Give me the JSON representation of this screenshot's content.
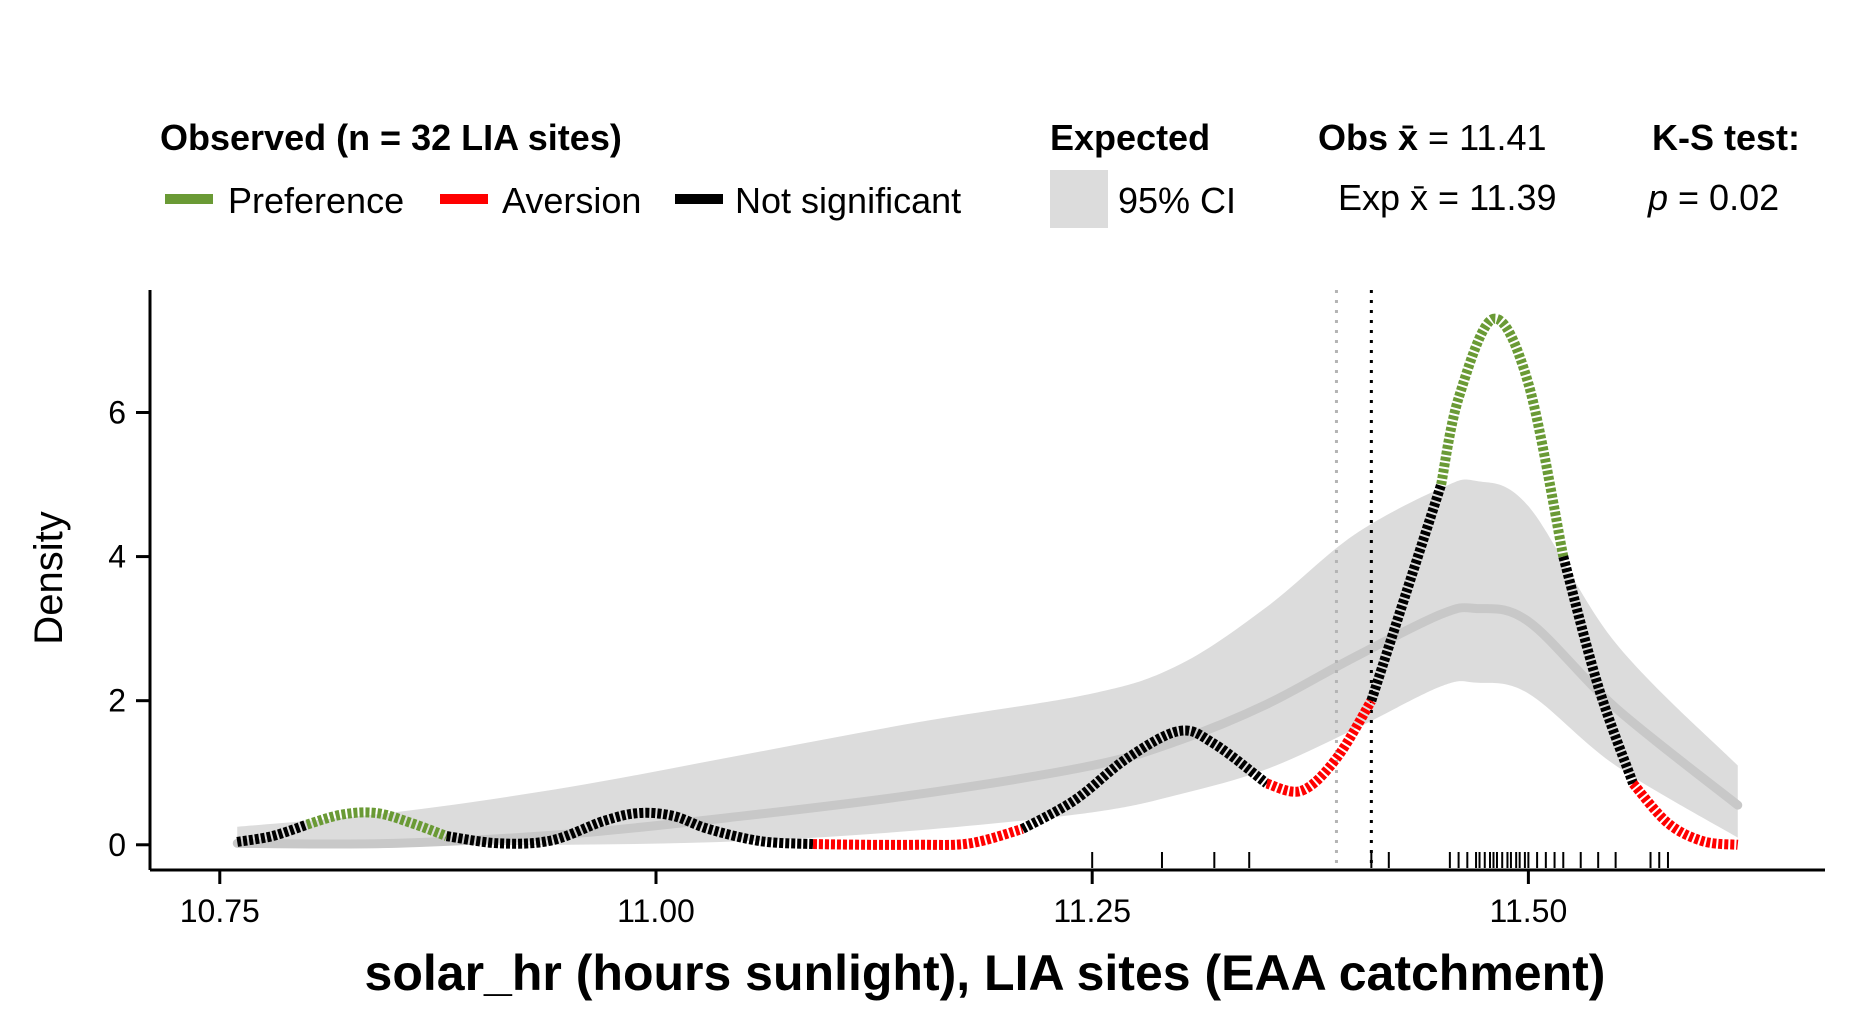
{
  "legend": {
    "observed_title": "Observed (n = 32 LIA sites)",
    "preference": "Preference",
    "aversion": "Aversion",
    "not_significant": "Not significant",
    "expected_title": "Expected",
    "ci_label": "95% CI",
    "obs_mean_label": "Obs x̄",
    "obs_mean_value": "= 11.41",
    "exp_mean_label": "Exp x̄",
    "exp_mean_value": "= 11.39",
    "ks_title": "K-S test:",
    "ks_p_label": "p",
    "ks_p_value": "= 0.02"
  },
  "colors": {
    "preference": "#6a9a35",
    "aversion": "#ff0000",
    "not_significant": "#000000",
    "ci_fill": "#dcdcdc",
    "expected_line": "#c8c8c8",
    "obs_mean_line": "#000000",
    "exp_mean_line": "#b4b4b4"
  },
  "chart_data": {
    "type": "line",
    "title": "",
    "xlabel": "solar_hr (hours sunlight), LIA sites (EAA catchment)",
    "ylabel": "Density",
    "xlim": [
      10.71,
      11.67
    ],
    "ylim": [
      -0.35,
      7.7
    ],
    "x_ticks": [
      10.75,
      11.0,
      11.25,
      11.5
    ],
    "x_tick_labels": [
      "10.75",
      "11.00",
      "11.25",
      "11.50"
    ],
    "y_ticks": [
      0,
      2,
      4,
      6
    ],
    "y_tick_labels": [
      "0",
      "2",
      "4",
      "6"
    ],
    "grid": false,
    "legend_position": "top",
    "observed_mean": 11.41,
    "expected_mean": 11.39,
    "ks_p": 0.02,
    "observed_density": [
      {
        "x": 10.76,
        "y": 0.04,
        "sig": "not_significant"
      },
      {
        "x": 10.78,
        "y": 0.12,
        "sig": "not_significant"
      },
      {
        "x": 10.8,
        "y": 0.28,
        "sig": "preference"
      },
      {
        "x": 10.82,
        "y": 0.42,
        "sig": "preference"
      },
      {
        "x": 10.84,
        "y": 0.44,
        "sig": "preference"
      },
      {
        "x": 10.86,
        "y": 0.3,
        "sig": "preference"
      },
      {
        "x": 10.88,
        "y": 0.12,
        "sig": "not_significant"
      },
      {
        "x": 10.91,
        "y": 0.02,
        "sig": "not_significant"
      },
      {
        "x": 10.94,
        "y": 0.06,
        "sig": "not_significant"
      },
      {
        "x": 10.97,
        "y": 0.33,
        "sig": "not_significant"
      },
      {
        "x": 10.99,
        "y": 0.44,
        "sig": "not_significant"
      },
      {
        "x": 11.01,
        "y": 0.4,
        "sig": "not_significant"
      },
      {
        "x": 11.03,
        "y": 0.22,
        "sig": "not_significant"
      },
      {
        "x": 11.06,
        "y": 0.05,
        "sig": "not_significant"
      },
      {
        "x": 11.09,
        "y": 0.01,
        "sig": "aversion"
      },
      {
        "x": 11.12,
        "y": 0.0,
        "sig": "aversion"
      },
      {
        "x": 11.15,
        "y": 0.0,
        "sig": "aversion"
      },
      {
        "x": 11.18,
        "y": 0.02,
        "sig": "aversion"
      },
      {
        "x": 11.21,
        "y": 0.22,
        "sig": "not_significant"
      },
      {
        "x": 11.24,
        "y": 0.62,
        "sig": "not_significant"
      },
      {
        "x": 11.27,
        "y": 1.2,
        "sig": "not_significant"
      },
      {
        "x": 11.3,
        "y": 1.58,
        "sig": "not_significant"
      },
      {
        "x": 11.32,
        "y": 1.4,
        "sig": "not_significant"
      },
      {
        "x": 11.35,
        "y": 0.85,
        "sig": "aversion"
      },
      {
        "x": 11.37,
        "y": 0.75,
        "sig": "aversion"
      },
      {
        "x": 11.39,
        "y": 1.2,
        "sig": "aversion"
      },
      {
        "x": 11.41,
        "y": 2.0,
        "sig": "not_significant"
      },
      {
        "x": 11.43,
        "y": 3.5,
        "sig": "not_significant"
      },
      {
        "x": 11.45,
        "y": 5.0,
        "sig": "preference"
      },
      {
        "x": 11.46,
        "y": 6.2,
        "sig": "preference"
      },
      {
        "x": 11.48,
        "y": 7.3,
        "sig": "preference"
      },
      {
        "x": 11.5,
        "y": 6.4,
        "sig": "preference"
      },
      {
        "x": 11.52,
        "y": 4.0,
        "sig": "not_significant"
      },
      {
        "x": 11.54,
        "y": 2.2,
        "sig": "not_significant"
      },
      {
        "x": 11.56,
        "y": 0.85,
        "sig": "aversion"
      },
      {
        "x": 11.58,
        "y": 0.3,
        "sig": "aversion"
      },
      {
        "x": 11.6,
        "y": 0.05,
        "sig": "aversion"
      },
      {
        "x": 11.62,
        "y": 0.0,
        "sig": "aversion"
      }
    ],
    "expected_density": {
      "x": [
        10.76,
        10.85,
        10.95,
        11.05,
        11.15,
        11.25,
        11.3,
        11.35,
        11.4,
        11.45,
        11.47,
        11.5,
        11.55,
        11.62
      ],
      "y": [
        0.02,
        0.02,
        0.15,
        0.4,
        0.7,
        1.1,
        1.45,
        1.95,
        2.6,
        3.2,
        3.28,
        3.1,
        1.9,
        0.55
      ],
      "lower": [
        0.0,
        0.0,
        0.0,
        0.05,
        0.2,
        0.45,
        0.7,
        1.05,
        1.6,
        2.2,
        2.25,
        2.1,
        1.1,
        0.1
      ],
      "upper": [
        0.25,
        0.45,
        0.8,
        1.25,
        1.7,
        2.1,
        2.5,
        3.3,
        4.3,
        4.95,
        5.05,
        4.7,
        2.8,
        1.1
      ]
    },
    "rug": [
      11.25,
      11.29,
      11.32,
      11.34,
      11.41,
      11.42,
      11.455,
      11.46,
      11.465,
      11.47,
      11.472,
      11.475,
      11.478,
      11.48,
      11.482,
      11.485,
      11.488,
      11.49,
      11.493,
      11.495,
      11.498,
      11.5,
      11.505,
      11.51,
      11.515,
      11.52,
      11.53,
      11.54,
      11.55,
      11.57,
      11.575,
      11.58
    ]
  }
}
